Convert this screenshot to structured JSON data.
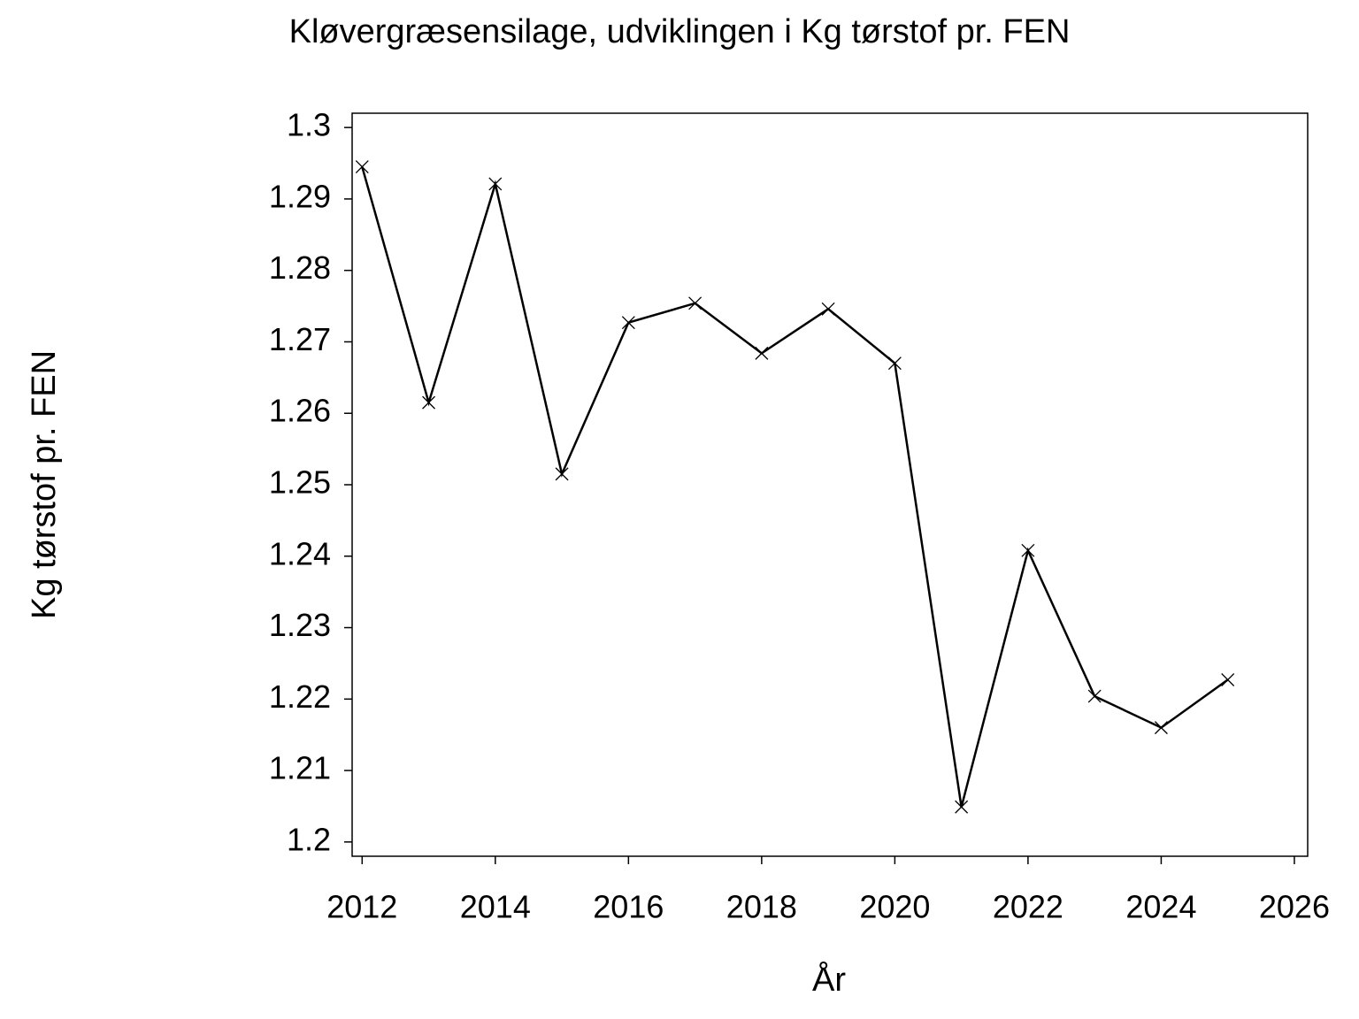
{
  "chart_data": {
    "type": "line",
    "title": "Kløvergræsensilage,  udviklingen  i  Kg  tørstof  pr.  FEN",
    "x_label": "År",
    "y_label": "Kg  tørstof  pr.  FEN",
    "x": [
      2012,
      2013,
      2014,
      2015,
      2016,
      2017,
      2018,
      2019,
      2020,
      2021,
      2022,
      2023,
      2024,
      2025
    ],
    "series": [
      {
        "name": "Kg tørstof pr. FEN",
        "color": "#000000",
        "values": [
          1.2945,
          1.2615,
          1.2921,
          1.2515,
          1.2727,
          1.2754,
          1.2684,
          1.2746,
          1.267,
          1.2049,
          1.2408,
          1.2204,
          1.216,
          1.2227
        ]
      }
    ],
    "xlim": [
      2011.85,
      2026.2
    ],
    "ylim": [
      1.198,
      1.302
    ],
    "xticks": [
      2012,
      2014,
      2016,
      2018,
      2020,
      2022,
      2024,
      2026
    ],
    "yticks": [
      1.2,
      1.21,
      1.22,
      1.23,
      1.24,
      1.25,
      1.26,
      1.27,
      1.28,
      1.29,
      1.3
    ],
    "grid": false
  }
}
